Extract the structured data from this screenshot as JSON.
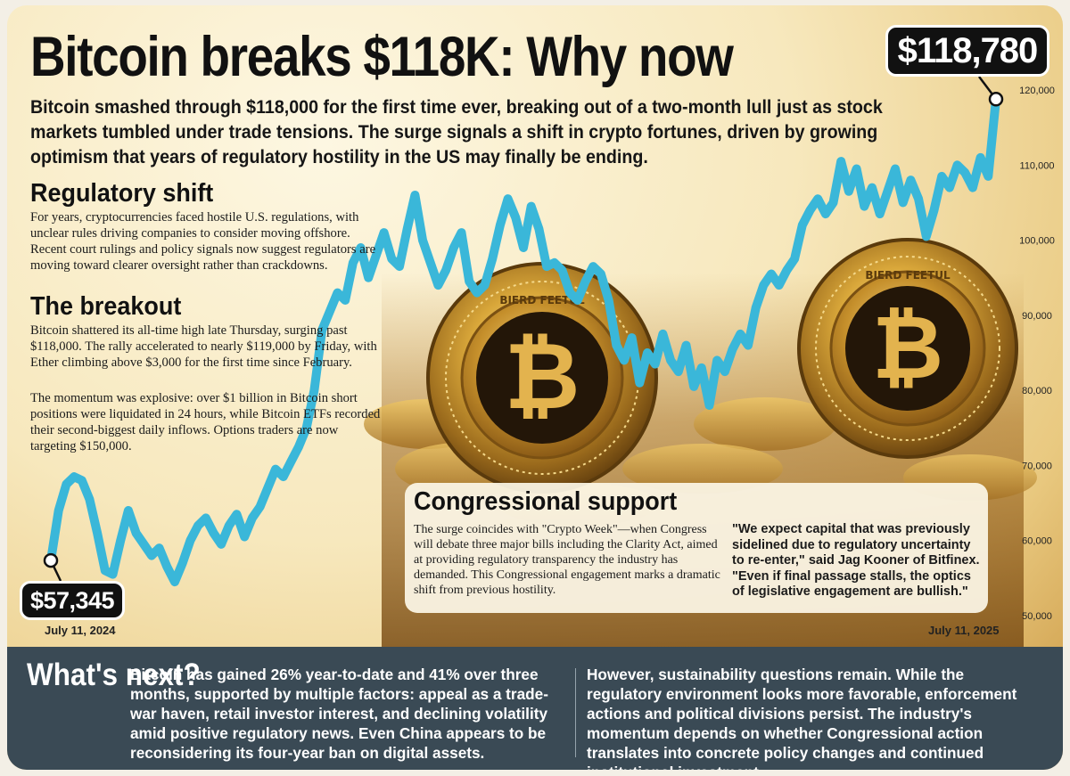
{
  "title": "Bitcoin breaks $118K: Why now",
  "deck": "Bitcoin smashed through $118,000 for the first time ever, breaking out of a two-month lull just as stock markets tumbled under trade tensions. The surge signals a shift in crypto fortunes, driven by growing optimism that years of regulatory hostility in the US may finally be ending.",
  "sections": {
    "regulatory": {
      "heading": "Regulatory shift",
      "body": "For years, cryptocurrencies faced hostile U.S. regulations, with unclear rules driving companies to consider moving offshore. Recent court rulings and policy signals now suggest regulators are moving toward clearer oversight rather than crackdowns."
    },
    "breakout": {
      "heading": "The breakout",
      "body1": "Bitcoin shattered its all-time high late Thursday, surging past $118,000. The rally accelerated to nearly $119,000 by Friday, with Ether climbing above $3,000 for the first time since February.",
      "body2": "The momentum was explosive: over $1 billion in Bitcoin short positions were liquidated in 24 hours, while Bitcoin ETFs recorded their second-biggest daily inflows. Options traders are now targeting $150,000."
    },
    "congress": {
      "heading": "Congressional support",
      "body": "The surge coincides with \"Crypto Week\"—when Congress will debate three major bills including the Clarity Act, aimed at providing regulatory transparency the industry has demanded. This Congressional engagement marks a dramatic shift from previous hostility.",
      "quote": "\"We expect capital that was previously sidelined due to regulatory uncertainty to re-enter,\" said Jag Kooner of Bitfinex. \"Even if final passage stalls, the optics of legislative engagement are bullish.\""
    }
  },
  "whats_next": {
    "heading": "What's next?",
    "col1": "Bitcoin has gained 26% year-to-date and 41% over three months, supported by multiple factors: appeal as a trade-war haven, retail investor interest, and declining volatility amid positive regulatory news. Even China appears to be reconsidering its four-year ban on digital assets.",
    "col2": "However, sustainability questions remain. While the regulatory environment looks more favorable, enforcement actions and political divisions persist. The industry's momentum depends on whether Congressional action translates into concrete policy changes and continued institutional investment."
  },
  "coin_text": "BIERD FEETUL",
  "colors": {
    "line": "#3ab7d9",
    "pill": "#111111",
    "bottom_panel": "#3a4a55",
    "coin_gold": "#d9a73a"
  },
  "chart_data": {
    "type": "line",
    "title": "",
    "xlabel": "",
    "ylabel": "",
    "ylim": [
      50000,
      120000
    ],
    "yticks": [
      "50,000",
      "60,000",
      "70,000",
      "80,000",
      "90,000",
      "100,000",
      "110,000",
      "120,000"
    ],
    "x_start_label": "July 11, 2024",
    "x_end_label": "July 11, 2025",
    "start_label": "$57,345",
    "end_label": "$118,780",
    "series": [
      {
        "values": [
          57345,
          64000,
          67500,
          68500,
          68000,
          65500,
          61000,
          56000,
          55500,
          60000,
          64000,
          61000,
          59500,
          58000,
          59000,
          56500,
          54500,
          57000,
          60000,
          62000,
          63000,
          61000,
          59500,
          62000,
          63500,
          60500,
          63000,
          64500,
          67000,
          69500,
          68500,
          70500,
          72500,
          75000,
          80000,
          88000,
          90500,
          93000,
          92000,
          97000,
          99000,
          95000,
          98000,
          101000,
          97500,
          96500,
          101500,
          106000,
          100000,
          97000,
          94000,
          96000,
          99000,
          101000,
          94500,
          93000,
          94000,
          97500,
          102000,
          105500,
          103000,
          99000,
          104500,
          101500,
          96500,
          97000,
          96000,
          93000,
          92000,
          94500,
          96500,
          95500,
          92000,
          86000,
          84000,
          87000,
          81000,
          85000,
          83500,
          87500,
          84000,
          82500,
          86000,
          80500,
          83000,
          78000,
          84000,
          82500,
          85500,
          87500,
          86000,
          91000,
          94000,
          95500,
          94000,
          96000,
          97500,
          102000,
          104000,
          105500,
          103500,
          105000,
          110500,
          106500,
          109500,
          104500,
          107000,
          103500,
          106500,
          109500,
          105000,
          108000,
          105500,
          100500,
          104000,
          108500,
          107000,
          110000,
          109000,
          107000,
          111000,
          108500,
          118780
        ]
      }
    ]
  }
}
